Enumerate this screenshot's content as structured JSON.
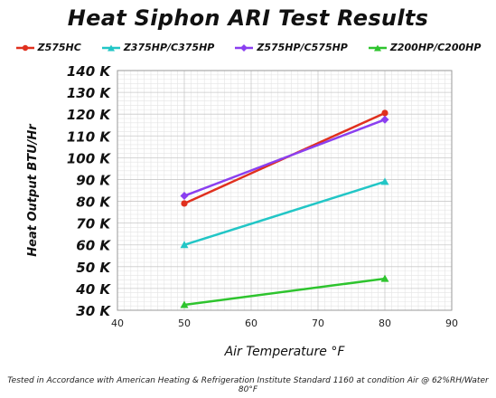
{
  "chart_data": {
    "type": "line",
    "title": "Heat Siphon ARI Test Results",
    "xlabel": "Air Temperature °F",
    "ylabel": "Heat Output BTU/Hr",
    "xlim": [
      40,
      90
    ],
    "ylim": [
      30,
      140
    ],
    "x_ticks": [
      "40",
      "50",
      "60",
      "70",
      "80",
      "90"
    ],
    "y_ticks": [
      "30 K",
      "40 K",
      "50 K",
      "60 K",
      "70 K",
      "80 K",
      "90 K",
      "100 K",
      "110 K",
      "120 K",
      "130 K",
      "140 K"
    ],
    "grid": true,
    "legend_position": "top",
    "series": [
      {
        "name": "Z575HC",
        "color": "#e0301e",
        "marker": "circle",
        "x": [
          50,
          80
        ],
        "y": [
          79,
          120.5
        ]
      },
      {
        "name": "Z375HP/C375HP",
        "color": "#22c6c6",
        "marker": "triangle",
        "x": [
          50,
          80
        ],
        "y": [
          60,
          89
        ]
      },
      {
        "name": "Z575HP/C575HP",
        "color": "#8a3ff0",
        "marker": "diamond",
        "x": [
          50,
          80
        ],
        "y": [
          82.5,
          117.5
        ]
      },
      {
        "name": "Z200HP/C200HP",
        "color": "#2ec42e",
        "marker": "triangle",
        "x": [
          50,
          80
        ],
        "y": [
          32.5,
          44.5
        ]
      }
    ]
  },
  "footnote": "Tested in Accordance with American Heating & Refrigeration Institute Standard 1160 at condition Air @ 62%RH/Water 80°F"
}
